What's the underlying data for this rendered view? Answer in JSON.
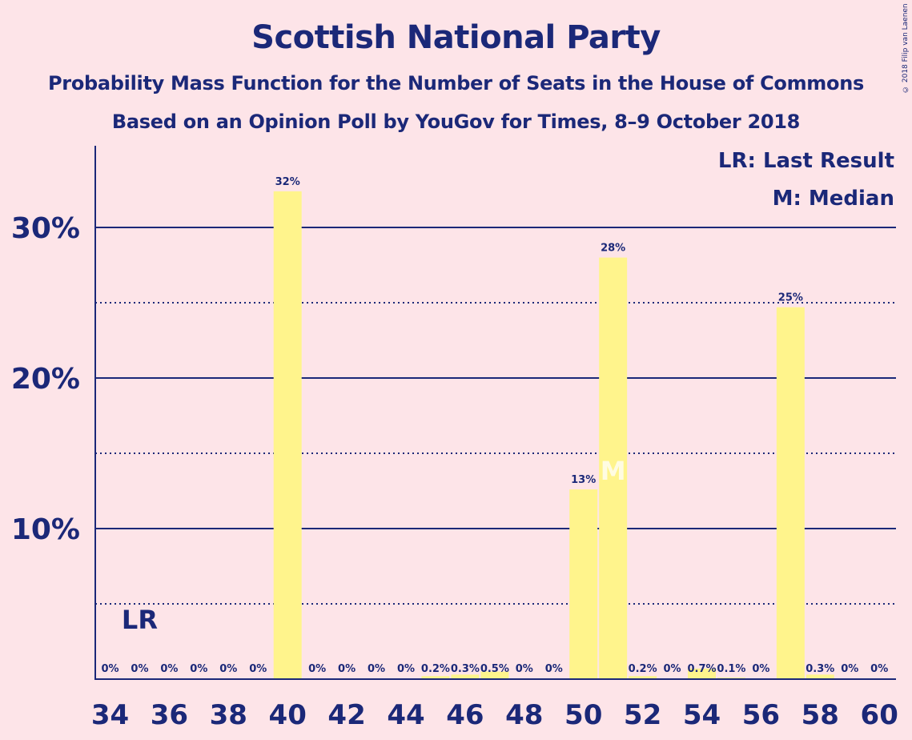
{
  "title": "Scottish National Party",
  "subtitle": "Probability Mass Function for the Number of Seats in the House of Commons",
  "subtitle2": "Based on an Opinion Poll by YouGov for Times, 8–9 October 2018",
  "copyright": "© 2018 Filip van Laenen",
  "colors": {
    "background": "#fde4e8",
    "bar": "#fff48c",
    "axis": "#1b2878",
    "text": "#1b2878"
  },
  "chart_data": {
    "type": "bar",
    "x": [
      34,
      35,
      36,
      37,
      38,
      39,
      40,
      41,
      42,
      43,
      44,
      45,
      46,
      47,
      48,
      49,
      50,
      51,
      52,
      53,
      54,
      55,
      56,
      57,
      58,
      59,
      60
    ],
    "values": [
      0,
      0,
      0,
      0,
      0,
      0,
      32.4,
      0,
      0,
      0,
      0,
      0.2,
      0.3,
      0.5,
      0,
      0,
      12.6,
      28.0,
      0.2,
      0,
      0.7,
      0.1,
      0,
      24.7,
      0.3,
      0,
      0
    ],
    "data_labels": [
      "0%",
      "0%",
      "0%",
      "0%",
      "0%",
      "0%",
      "32%",
      "0%",
      "0%",
      "0%",
      "0%",
      "0.2%",
      "0.3%",
      "0.5%",
      "0%",
      "0%",
      "13%",
      "28%",
      "0.2%",
      "0%",
      "0.7%",
      "0.1%",
      "0%",
      "25%",
      "0.3%",
      "0%",
      "0%"
    ],
    "x_ticks": [
      "34",
      "36",
      "38",
      "40",
      "42",
      "44",
      "46",
      "48",
      "50",
      "52",
      "54",
      "56",
      "58",
      "60"
    ],
    "y_ticks": [
      "10%",
      "20%",
      "30%"
    ],
    "y_tick_values": [
      10,
      20,
      30
    ],
    "y_minor_gridlines": [
      5,
      15,
      25
    ],
    "ylim": [
      0,
      35
    ],
    "last_result_seat": 35,
    "last_result_label": "LR",
    "median_seat": 51,
    "median_label": "M",
    "legend": [
      "LR: Last Result",
      "M: Median"
    ],
    "legend_position": "top-right",
    "grid": true
  }
}
